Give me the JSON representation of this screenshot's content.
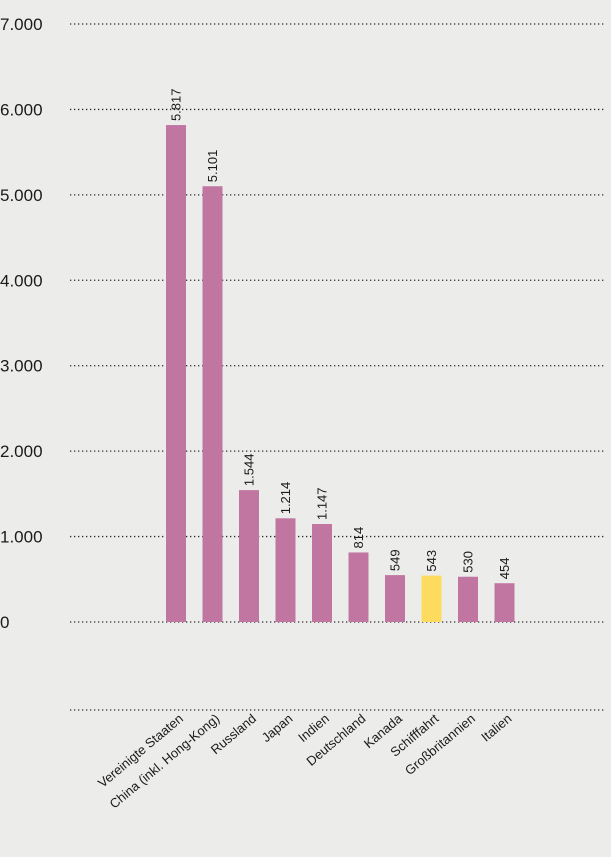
{
  "chart_data": {
    "type": "bar",
    "categories": [
      "Vereinigte Staaten",
      "China (inkl. Hong-Kong)",
      "Russland",
      "Japan",
      "Indien",
      "Deutschland",
      "Kanada",
      "Schifffahrt",
      "Großbritannien",
      "Italien"
    ],
    "values": [
      5817,
      5101,
      1544,
      1214,
      1147,
      814,
      549,
      543,
      530,
      454
    ],
    "value_labels": [
      "5.817",
      "5.101",
      "1.544",
      "1.214",
      "1.147",
      "814",
      "549",
      "543",
      "530",
      "454"
    ],
    "ylim": [
      0,
      7000
    ],
    "yticks": [
      0,
      1000,
      2000,
      3000,
      4000,
      5000,
      6000,
      7000
    ],
    "ytick_labels": [
      "0",
      "1.000",
      "2.000",
      "3.000",
      "4.000",
      "5.000",
      "6.000",
      "7.000"
    ],
    "grid": true,
    "colors": {
      "bar": "#c176a2",
      "highlight": "#fddb5f",
      "background": "#ecedeb"
    },
    "highlight_category": "Schifffahrt"
  }
}
